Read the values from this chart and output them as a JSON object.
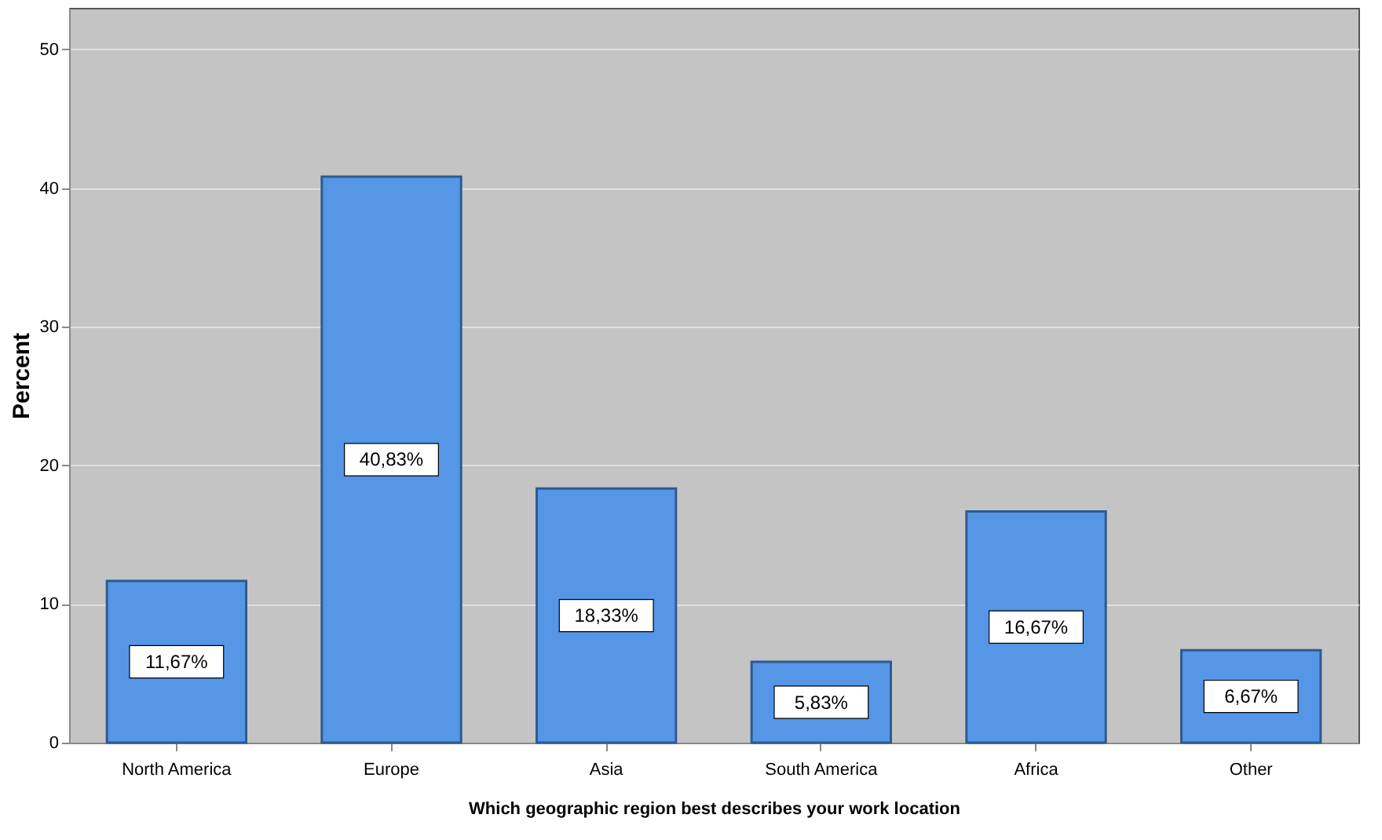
{
  "chart_data": {
    "type": "bar",
    "xlabel": "Which geographic region best describes your work location",
    "ylabel": "Percent",
    "categories": [
      "North America",
      "Europe",
      "Asia",
      "South America",
      "Africa",
      "Other"
    ],
    "values": [
      11.67,
      40.83,
      18.33,
      5.83,
      16.67,
      6.67
    ],
    "value_labels": [
      "11,67%",
      "40,83%",
      "18,33%",
      "5,83%",
      "16,67%",
      "6,67%"
    ],
    "color": "#5596e6",
    "ylim": [
      0,
      53
    ],
    "yticks": [
      0,
      10,
      20,
      30,
      40,
      50
    ],
    "grid": "y"
  }
}
